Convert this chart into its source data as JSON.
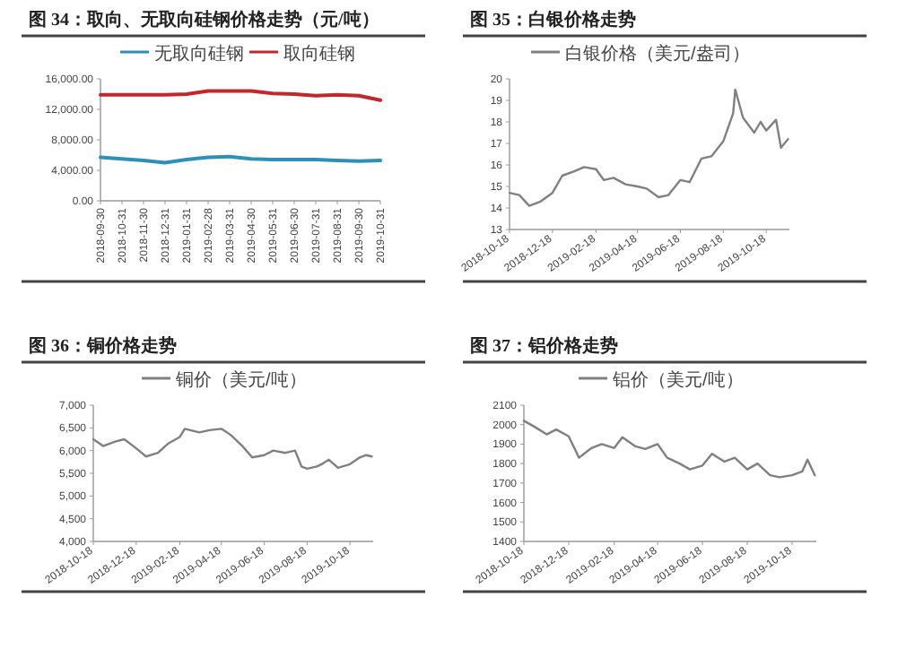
{
  "chart_data": [
    {
      "type": "line",
      "title": "图 34：取向、无取向硅钢价格走势（元/吨）",
      "categories": [
        "2018-09-30",
        "2018-10-31",
        "2018-11-30",
        "2018-12-31",
        "2019-01-31",
        "2019-02-28",
        "2019-03-31",
        "2019-04-30",
        "2019-05-31",
        "2019-06-30",
        "2019-07-31",
        "2019-08-31",
        "2019-09-30",
        "2019-10-31"
      ],
      "series": [
        {
          "name": "无取向硅钢",
          "color": "#2f8fb5",
          "values": [
            5700,
            5500,
            5300,
            5000,
            5400,
            5700,
            5800,
            5500,
            5400,
            5400,
            5400,
            5300,
            5200,
            5300
          ]
        },
        {
          "name": "取向硅钢",
          "color": "#c0282d",
          "values": [
            13900,
            13900,
            13900,
            13900,
            14000,
            14400,
            14400,
            14400,
            14100,
            14000,
            13800,
            13900,
            13800,
            13200
          ]
        }
      ],
      "ylim": [
        0,
        16000
      ],
      "yticks": [
        {
          "value": 0,
          "label": "0.00"
        },
        {
          "value": 4000,
          "label": "4,000.00"
        },
        {
          "value": 8000,
          "label": "8,000.00"
        },
        {
          "value": 12000,
          "label": "12,000.00"
        },
        {
          "value": 16000,
          "label": "16,000.00"
        }
      ],
      "legend": "top"
    },
    {
      "type": "line",
      "title": "图 35：白银价格走势",
      "x": [
        "2018-10-18",
        "2018-11-01",
        "2018-11-15",
        "2018-12-01",
        "2018-12-18",
        "2019-01-01",
        "2019-01-18",
        "2019-02-01",
        "2019-02-18",
        "2019-03-01",
        "2019-03-15",
        "2019-04-01",
        "2019-04-18",
        "2019-05-01",
        "2019-05-18",
        "2019-06-01",
        "2019-06-18",
        "2019-07-01",
        "2019-07-18",
        "2019-08-01",
        "2019-08-18",
        "2019-09-01",
        "2019-09-04",
        "2019-09-15",
        "2019-10-01",
        "2019-10-10",
        "2019-10-18",
        "2019-11-01",
        "2019-11-08",
        "2019-11-18"
      ],
      "series": [
        {
          "name": "白银价格（美元/盎司）",
          "color": "#808080",
          "values": [
            14.7,
            14.6,
            14.1,
            14.3,
            14.7,
            15.5,
            15.7,
            15.9,
            15.8,
            15.3,
            15.4,
            15.1,
            15.0,
            14.9,
            14.5,
            14.6,
            15.3,
            15.2,
            16.3,
            16.4,
            17.1,
            18.4,
            19.5,
            18.2,
            17.5,
            18.0,
            17.6,
            18.1,
            16.8,
            17.2
          ]
        }
      ],
      "xlim": [
        "2018-10-18",
        "2019-11-20"
      ],
      "xticks": [
        "2018-10-18",
        "2018-12-18",
        "2019-02-18",
        "2019-04-18",
        "2019-06-18",
        "2019-08-18",
        "2019-10-18"
      ],
      "ylim": [
        13,
        20
      ],
      "yticks": [
        13,
        14,
        15,
        16,
        17,
        18,
        19,
        20
      ],
      "legend": "top"
    },
    {
      "type": "line",
      "title": "图 36：铜价格走势",
      "x": [
        "2018-10-18",
        "2018-11-01",
        "2018-11-18",
        "2018-12-01",
        "2018-12-18",
        "2019-01-01",
        "2019-01-18",
        "2019-02-01",
        "2019-02-18",
        "2019-02-25",
        "2019-03-18",
        "2019-04-01",
        "2019-04-18",
        "2019-05-01",
        "2019-05-18",
        "2019-06-01",
        "2019-06-18",
        "2019-07-01",
        "2019-07-18",
        "2019-08-01",
        "2019-08-10",
        "2019-08-18",
        "2019-09-01",
        "2019-09-10",
        "2019-09-18",
        "2019-10-01",
        "2019-10-18",
        "2019-11-01",
        "2019-11-10",
        "2019-11-18"
      ],
      "series": [
        {
          "name": "铜价（美元/吨）",
          "color": "#808080",
          "values": [
            6250,
            6100,
            6200,
            6250,
            6050,
            5870,
            5950,
            6150,
            6300,
            6480,
            6400,
            6450,
            6480,
            6350,
            6100,
            5850,
            5900,
            6000,
            5950,
            6000,
            5650,
            5600,
            5650,
            5720,
            5800,
            5620,
            5700,
            5850,
            5900,
            5870
          ]
        }
      ],
      "xlim": [
        "2018-10-18",
        "2019-11-20"
      ],
      "xticks": [
        "2018-10-18",
        "2018-12-18",
        "2019-02-18",
        "2019-04-18",
        "2019-06-18",
        "2019-08-18",
        "2019-10-18"
      ],
      "ylim": [
        4000,
        7000
      ],
      "yticks": [
        {
          "value": 4000,
          "label": "4,000"
        },
        {
          "value": 4500,
          "label": "4,500"
        },
        {
          "value": 5000,
          "label": "5,000"
        },
        {
          "value": 5500,
          "label": "5,500"
        },
        {
          "value": 6000,
          "label": "6,000"
        },
        {
          "value": 6500,
          "label": "6,500"
        },
        {
          "value": 7000,
          "label": "7,000"
        }
      ],
      "legend": "top"
    },
    {
      "type": "line",
      "title": "图 37：铝价格走势",
      "x": [
        "2018-10-18",
        "2018-11-01",
        "2018-11-18",
        "2018-12-01",
        "2018-12-18",
        "2019-01-01",
        "2019-01-18",
        "2019-02-01",
        "2019-02-18",
        "2019-03-01",
        "2019-03-18",
        "2019-04-01",
        "2019-04-18",
        "2019-05-01",
        "2019-05-18",
        "2019-06-01",
        "2019-06-18",
        "2019-07-01",
        "2019-07-18",
        "2019-08-01",
        "2019-08-18",
        "2019-09-01",
        "2019-09-18",
        "2019-10-01",
        "2019-10-18",
        "2019-11-01",
        "2019-11-08",
        "2019-11-18"
      ],
      "series": [
        {
          "name": "铝价（美元/吨）",
          "color": "#808080",
          "values": [
            2020,
            1990,
            1950,
            1975,
            1940,
            1830,
            1880,
            1900,
            1880,
            1935,
            1890,
            1875,
            1900,
            1830,
            1800,
            1770,
            1790,
            1850,
            1810,
            1830,
            1770,
            1800,
            1740,
            1730,
            1740,
            1760,
            1820,
            1740
          ]
        }
      ],
      "xlim": [
        "2018-10-18",
        "2019-11-20"
      ],
      "xticks": [
        "2018-10-18",
        "2018-12-18",
        "2019-02-18",
        "2019-04-18",
        "2019-06-18",
        "2019-08-18",
        "2019-10-18"
      ],
      "ylim": [
        1400,
        2100
      ],
      "yticks": [
        1400,
        1500,
        1600,
        1700,
        1800,
        1900,
        2000,
        2100
      ],
      "legend": "top"
    }
  ]
}
